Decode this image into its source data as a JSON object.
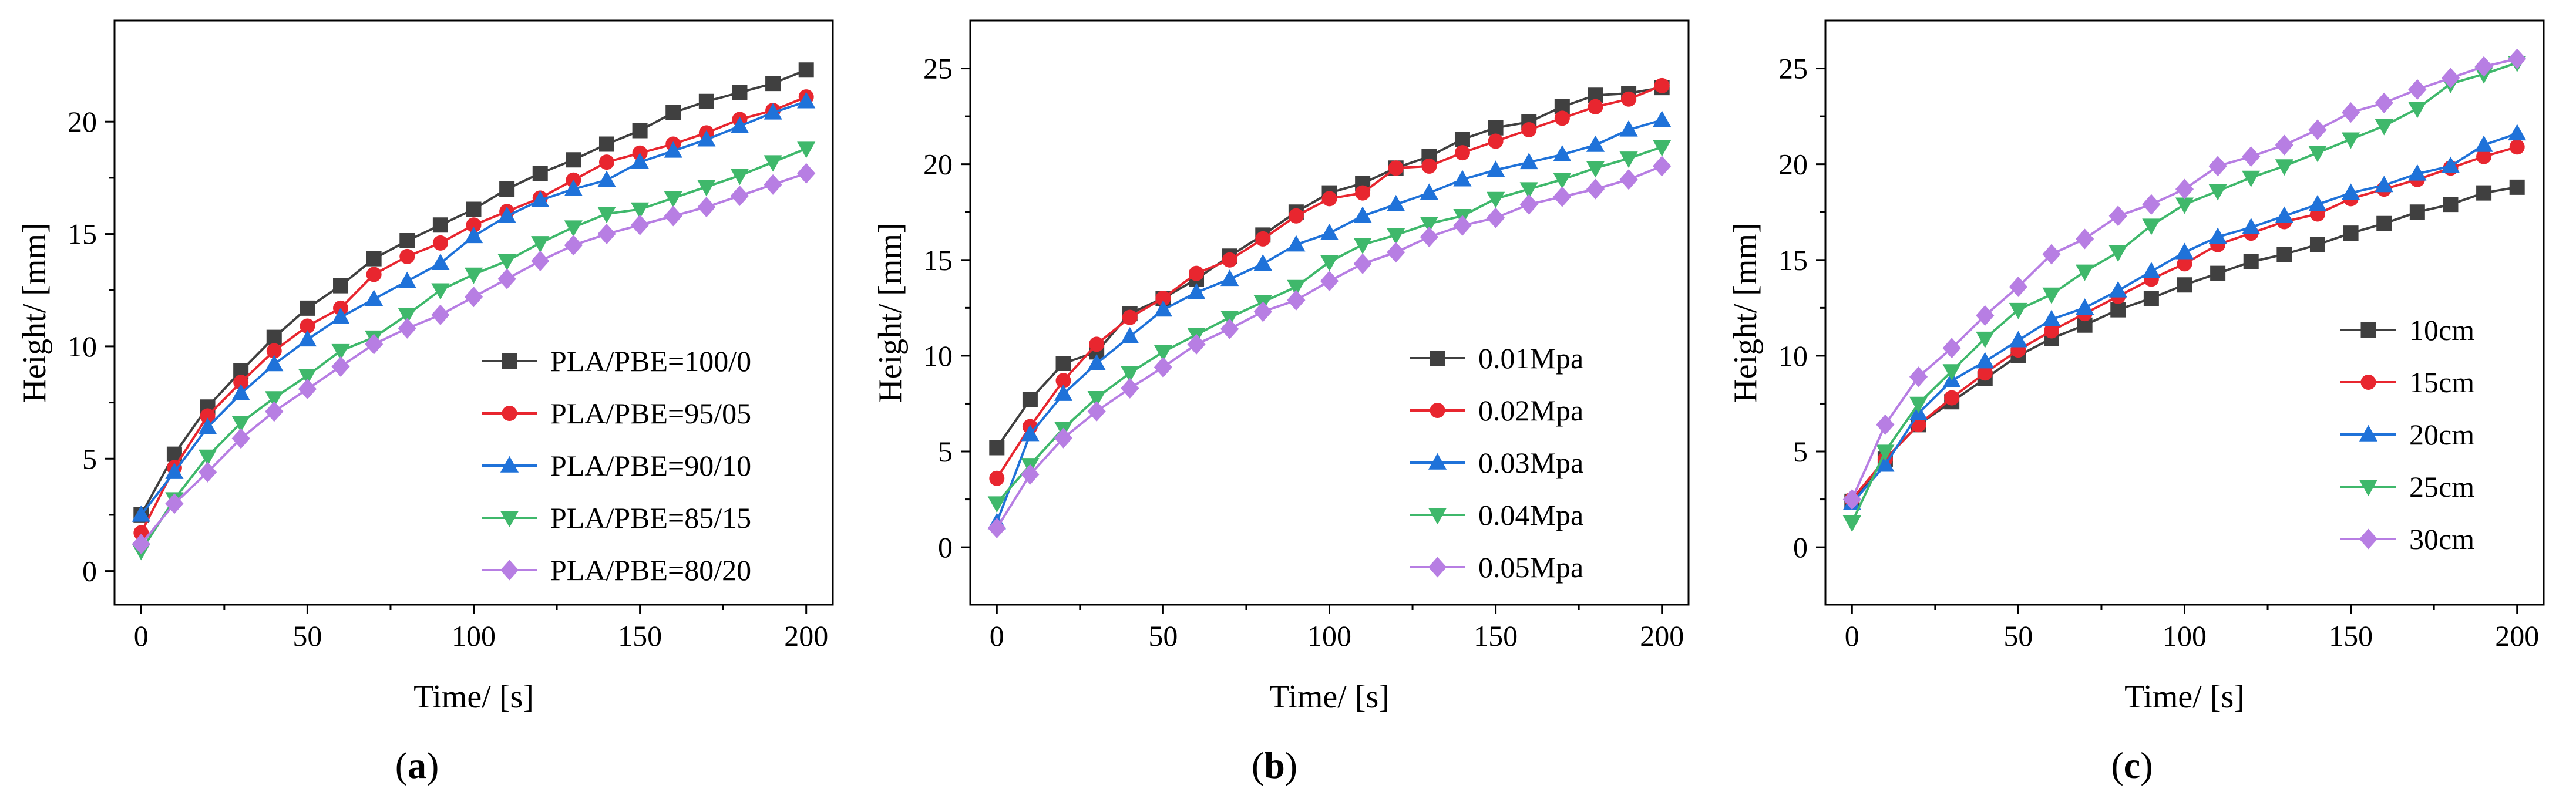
{
  "colors": {
    "black": "#404040",
    "red": "#e8262f",
    "blue": "#1f72d9",
    "green": "#3fb86b",
    "purple": "#b77ee3"
  },
  "chart_data": [
    {
      "type": "line",
      "panel_label": "a",
      "xlabel": "Time/ [s]",
      "ylabel": "Height/ [mm]",
      "xlim": [
        -8,
        208
      ],
      "ylim": [
        -1.5,
        24.5
      ],
      "xticks": [
        0,
        50,
        100,
        150,
        200
      ],
      "yticks": [
        0,
        5,
        10,
        15,
        20
      ],
      "legend_position": "right",
      "x": [
        0,
        10,
        20,
        30,
        40,
        50,
        60,
        70,
        80,
        90,
        100,
        110,
        120,
        130,
        140,
        150,
        160,
        170,
        180,
        190,
        200
      ],
      "series": [
        {
          "name": "PLA/PBE=100/0",
          "color": "#404040",
          "marker": "square",
          "values": [
            2.5,
            5.2,
            7.3,
            8.9,
            10.4,
            11.7,
            12.7,
            13.9,
            14.7,
            15.4,
            16.1,
            17.0,
            17.7,
            18.3,
            19.0,
            19.6,
            20.4,
            20.9,
            21.3,
            21.7,
            22.3
          ]
        },
        {
          "name": "PLA/PBE=95/05",
          "color": "#e8262f",
          "marker": "circle",
          "values": [
            1.7,
            4.6,
            6.9,
            8.4,
            9.8,
            10.9,
            11.7,
            13.2,
            14.0,
            14.6,
            15.4,
            16.0,
            16.6,
            17.4,
            18.2,
            18.6,
            19.0,
            19.5,
            20.1,
            20.5,
            21.1
          ]
        },
        {
          "name": "PLA/PBE=90/10",
          "color": "#1f72d9",
          "marker": "triangle-up",
          "values": [
            2.5,
            4.4,
            6.4,
            7.9,
            9.2,
            10.3,
            11.3,
            12.1,
            12.9,
            13.7,
            14.9,
            15.8,
            16.5,
            17.0,
            17.4,
            18.2,
            18.7,
            19.2,
            19.8,
            20.4,
            20.9
          ]
        },
        {
          "name": "PLA/PBE=85/15",
          "color": "#3fb86b",
          "marker": "triangle-down",
          "values": [
            0.9,
            3.2,
            5.1,
            6.6,
            7.7,
            8.7,
            9.8,
            10.4,
            11.4,
            12.5,
            13.2,
            13.8,
            14.6,
            15.3,
            15.9,
            16.1,
            16.6,
            17.1,
            17.6,
            18.2,
            18.8
          ]
        },
        {
          "name": "PLA/PBE=80/20",
          "color": "#b77ee3",
          "marker": "diamond",
          "values": [
            1.2,
            3.0,
            4.4,
            5.9,
            7.1,
            8.1,
            9.1,
            10.1,
            10.8,
            11.4,
            12.2,
            13.0,
            13.8,
            14.5,
            15.0,
            15.4,
            15.8,
            16.2,
            16.7,
            17.2,
            17.7
          ]
        }
      ]
    },
    {
      "type": "line",
      "panel_label": "b",
      "xlabel": "Time/ [s]",
      "ylabel": "Height/ [mm]",
      "xlim": [
        -8,
        208
      ],
      "ylim": [
        -3,
        27.5
      ],
      "xticks": [
        0,
        50,
        100,
        150,
        200
      ],
      "yticks": [
        0,
        5,
        10,
        15,
        20,
        25
      ],
      "legend_position": "right",
      "x": [
        0,
        10,
        20,
        30,
        40,
        50,
        60,
        70,
        80,
        90,
        100,
        110,
        120,
        130,
        140,
        150,
        160,
        170,
        180,
        190,
        200
      ],
      "series": [
        {
          "name": "0.01Mpa",
          "color": "#404040",
          "marker": "square",
          "values": [
            5.2,
            7.7,
            9.6,
            10.2,
            12.2,
            13.0,
            14.0,
            15.2,
            16.3,
            17.5,
            18.5,
            19.0,
            19.8,
            20.4,
            21.3,
            21.9,
            22.2,
            23.0,
            23.6,
            23.7,
            24.0
          ]
        },
        {
          "name": "0.02Mpa",
          "color": "#e8262f",
          "marker": "circle",
          "values": [
            3.6,
            6.3,
            8.7,
            10.6,
            12.0,
            13.0,
            14.3,
            15.0,
            16.1,
            17.3,
            18.2,
            18.5,
            19.8,
            19.9,
            20.6,
            21.2,
            21.8,
            22.4,
            23.0,
            23.4,
            24.1
          ]
        },
        {
          "name": "0.03Mpa",
          "color": "#1f72d9",
          "marker": "triangle-up",
          "values": [
            1.3,
            5.9,
            8.0,
            9.6,
            11.0,
            12.4,
            13.3,
            14.0,
            14.8,
            15.8,
            16.4,
            17.3,
            17.9,
            18.5,
            19.2,
            19.7,
            20.1,
            20.5,
            21.0,
            21.8,
            22.3
          ]
        },
        {
          "name": "0.04Mpa",
          "color": "#3fb86b",
          "marker": "triangle-down",
          "values": [
            2.3,
            4.3,
            6.2,
            7.8,
            9.1,
            10.2,
            11.1,
            12.0,
            12.8,
            13.6,
            14.9,
            15.8,
            16.3,
            16.9,
            17.3,
            18.2,
            18.7,
            19.2,
            19.8,
            20.3,
            20.9
          ]
        },
        {
          "name": "0.05Mpa",
          "color": "#b77ee3",
          "marker": "diamond",
          "values": [
            1.0,
            3.8,
            5.7,
            7.1,
            8.3,
            9.4,
            10.6,
            11.4,
            12.3,
            12.9,
            13.9,
            14.8,
            15.4,
            16.2,
            16.8,
            17.2,
            17.9,
            18.3,
            18.7,
            19.2,
            19.9
          ]
        }
      ]
    },
    {
      "type": "line",
      "panel_label": "c",
      "xlabel": "Time/ [s]",
      "ylabel": "Height/ [mm]",
      "xlim": [
        -8,
        208
      ],
      "ylim": [
        -3,
        27.5
      ],
      "xticks": [
        0,
        50,
        100,
        150,
        200
      ],
      "yticks": [
        0,
        5,
        10,
        15,
        20,
        25
      ],
      "legend_position": "bottom-right",
      "x": [
        0,
        10,
        20,
        30,
        40,
        50,
        60,
        70,
        80,
        90,
        100,
        110,
        120,
        130,
        140,
        150,
        160,
        170,
        180,
        190,
        200
      ],
      "series": [
        {
          "name": "10cm",
          "color": "#404040",
          "marker": "square",
          "values": [
            2.4,
            4.6,
            6.4,
            7.6,
            8.8,
            10.0,
            10.9,
            11.6,
            12.4,
            13.0,
            13.7,
            14.3,
            14.9,
            15.3,
            15.8,
            16.4,
            16.9,
            17.5,
            17.9,
            18.5,
            18.8
          ]
        },
        {
          "name": "15cm",
          "color": "#e8262f",
          "marker": "circle",
          "values": [
            2.5,
            4.6,
            6.4,
            7.8,
            9.1,
            10.3,
            11.3,
            12.2,
            13.1,
            14.0,
            14.8,
            15.8,
            16.4,
            17.0,
            17.4,
            18.2,
            18.7,
            19.2,
            19.8,
            20.4,
            20.9
          ]
        },
        {
          "name": "20cm",
          "color": "#1f72d9",
          "marker": "triangle-up",
          "values": [
            2.3,
            4.3,
            7.0,
            8.7,
            9.7,
            10.8,
            11.9,
            12.5,
            13.4,
            14.4,
            15.4,
            16.2,
            16.7,
            17.3,
            17.9,
            18.5,
            18.9,
            19.5,
            19.9,
            21.0,
            21.6
          ]
        },
        {
          "name": "25cm",
          "color": "#3fb86b",
          "marker": "triangle-down",
          "values": [
            1.3,
            5.0,
            7.5,
            9.2,
            10.9,
            12.4,
            13.2,
            14.4,
            15.4,
            16.8,
            17.9,
            18.6,
            19.3,
            19.9,
            20.6,
            21.3,
            22.0,
            22.9,
            24.2,
            24.7,
            25.3
          ]
        },
        {
          "name": "30cm",
          "color": "#b77ee3",
          "marker": "diamond",
          "values": [
            2.5,
            6.4,
            8.9,
            10.4,
            12.1,
            13.6,
            15.3,
            16.1,
            17.3,
            17.9,
            18.7,
            19.9,
            20.4,
            21.0,
            21.8,
            22.7,
            23.2,
            23.9,
            24.5,
            25.1,
            25.5
          ]
        }
      ]
    }
  ]
}
